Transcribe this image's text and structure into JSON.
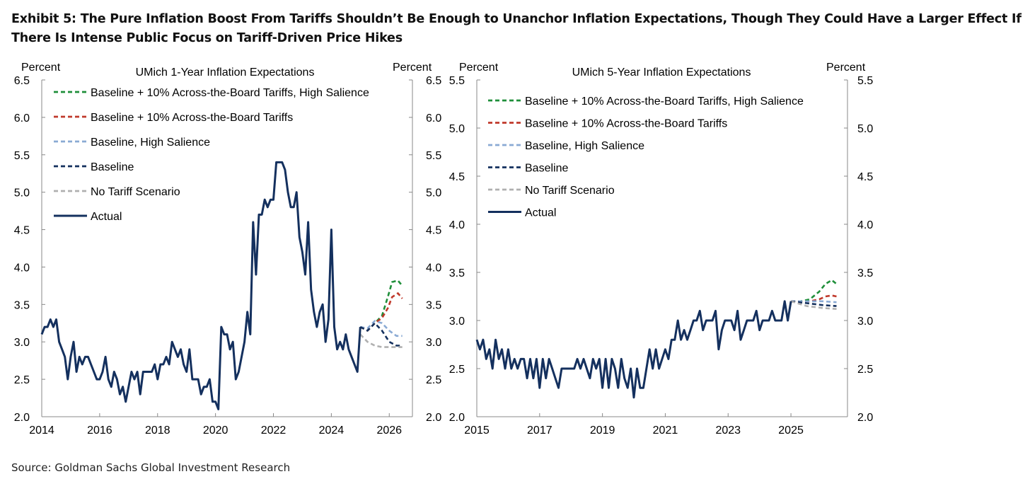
{
  "page": {
    "title": "Exhibit 5: The Pure Inflation Boost From Tariffs Shouldn’t Be Enough to Unanchor Inflation Expectations, Though They Could Have a Larger Effect If There Is Intense Public Focus on Tariff-Driven Price Hikes",
    "source": "Source: Goldman Sachs Global Investment Research"
  },
  "chart_data": [
    {
      "type": "line",
      "title": "UMich 1-Year Inflation  Expectations",
      "ylabel_left": "Percent",
      "ylabel_right": "Percent",
      "xlim": [
        2014,
        2026.8
      ],
      "ylim": [
        2.0,
        6.5
      ],
      "x_ticks": [
        "2014",
        "2016",
        "2018",
        "2020",
        "2022",
        "2024",
        "2026"
      ],
      "y_ticks": [
        "2.0",
        "2.5",
        "3.0",
        "3.5",
        "4.0",
        "4.5",
        "5.0",
        "5.5",
        "6.0",
        "6.5"
      ],
      "legend_position": "top-left",
      "series": [
        {
          "name": "Baseline + 10% Across-the-Board Tariffs, High Salience",
          "color": "#1f8f3a",
          "style": "dashed",
          "x": [
            2025.0,
            2025.25,
            2025.5,
            2025.75,
            2025.95,
            2026.1,
            2026.3,
            2026.45
          ],
          "y": [
            3.2,
            3.15,
            3.25,
            3.35,
            3.6,
            3.8,
            3.82,
            3.75
          ]
        },
        {
          "name": "Baseline + 10% Across-the-Board Tariffs",
          "color": "#c0392b",
          "style": "dashed",
          "x": [
            2025.0,
            2025.25,
            2025.5,
            2025.75,
            2025.95,
            2026.1,
            2026.3,
            2026.45
          ],
          "y": [
            3.2,
            3.15,
            3.25,
            3.32,
            3.45,
            3.6,
            3.65,
            3.58
          ]
        },
        {
          "name": "Baseline, High Salience",
          "color": "#8aaad4",
          "style": "dashed",
          "x": [
            2025.0,
            2025.25,
            2025.5,
            2025.75,
            2026.0,
            2026.25,
            2026.45
          ],
          "y": [
            3.2,
            3.18,
            3.28,
            3.25,
            3.15,
            3.08,
            3.08
          ]
        },
        {
          "name": "Baseline",
          "color": "#14305e",
          "style": "dashed",
          "x": [
            2025.0,
            2025.25,
            2025.5,
            2025.75,
            2026.0,
            2026.25,
            2026.45
          ],
          "y": [
            3.2,
            3.15,
            3.25,
            3.15,
            3.0,
            2.95,
            2.95
          ]
        },
        {
          "name": "No Tariff Scenario",
          "color": "#b0b0b0",
          "style": "dashed",
          "x": [
            2025.0,
            2025.25,
            2025.5,
            2025.75,
            2026.0,
            2026.25,
            2026.45
          ],
          "y": [
            3.1,
            3.0,
            2.95,
            2.93,
            2.93,
            2.93,
            2.93
          ]
        },
        {
          "name": "Actual",
          "color": "#14305e",
          "style": "solid",
          "x": [
            2014.0,
            2014.1,
            2014.2,
            2014.3,
            2014.4,
            2014.5,
            2014.6,
            2014.7,
            2014.8,
            2014.9,
            2015.0,
            2015.1,
            2015.2,
            2015.3,
            2015.4,
            2015.5,
            2015.6,
            2015.7,
            2015.8,
            2015.9,
            2016.0,
            2016.1,
            2016.2,
            2016.3,
            2016.4,
            2016.5,
            2016.6,
            2016.7,
            2016.8,
            2016.9,
            2017.0,
            2017.1,
            2017.2,
            2017.3,
            2017.4,
            2017.5,
            2017.6,
            2017.7,
            2017.8,
            2017.9,
            2018.0,
            2018.1,
            2018.2,
            2018.3,
            2018.4,
            2018.5,
            2018.6,
            2018.7,
            2018.8,
            2018.9,
            2019.0,
            2019.1,
            2019.2,
            2019.3,
            2019.4,
            2019.5,
            2019.6,
            2019.7,
            2019.8,
            2019.9,
            2020.0,
            2020.1,
            2020.2,
            2020.3,
            2020.4,
            2020.5,
            2020.6,
            2020.7,
            2020.8,
            2020.9,
            2021.0,
            2021.1,
            2021.2,
            2021.3,
            2021.4,
            2021.5,
            2021.6,
            2021.7,
            2021.8,
            2021.9,
            2022.0,
            2022.1,
            2022.2,
            2022.3,
            2022.4,
            2022.5,
            2022.6,
            2022.7,
            2022.8,
            2022.9,
            2023.0,
            2023.1,
            2023.2,
            2023.3,
            2023.4,
            2023.5,
            2023.6,
            2023.7,
            2023.8,
            2023.9,
            2024.0,
            2024.1,
            2024.2,
            2024.3,
            2024.4,
            2024.5,
            2024.6,
            2024.7,
            2024.8,
            2024.9,
            2025.0
          ],
          "y": [
            3.1,
            3.2,
            3.2,
            3.3,
            3.2,
            3.3,
            3.0,
            2.9,
            2.8,
            2.5,
            2.8,
            3.0,
            2.6,
            2.8,
            2.7,
            2.8,
            2.8,
            2.7,
            2.6,
            2.5,
            2.5,
            2.6,
            2.8,
            2.5,
            2.4,
            2.6,
            2.5,
            2.3,
            2.4,
            2.2,
            2.4,
            2.6,
            2.5,
            2.6,
            2.3,
            2.6,
            2.6,
            2.6,
            2.6,
            2.7,
            2.5,
            2.7,
            2.7,
            2.8,
            2.7,
            3.0,
            2.9,
            2.8,
            2.9,
            2.7,
            2.6,
            2.9,
            2.5,
            2.5,
            2.5,
            2.3,
            2.4,
            2.4,
            2.5,
            2.2,
            2.2,
            2.1,
            3.2,
            3.1,
            3.1,
            2.9,
            3.0,
            2.5,
            2.6,
            2.8,
            3.0,
            3.4,
            3.1,
            4.6,
            3.9,
            4.7,
            4.7,
            4.9,
            4.8,
            4.9,
            4.9,
            5.4,
            5.4,
            5.4,
            5.3,
            5.0,
            4.8,
            4.8,
            5.0,
            4.4,
            4.2,
            3.9,
            4.6,
            3.7,
            3.4,
            3.2,
            3.4,
            3.5,
            3.0,
            3.3,
            4.5,
            3.2,
            2.9,
            3.0,
            2.9,
            3.1,
            2.9,
            2.8,
            2.7,
            2.6,
            3.2
          ]
        }
      ]
    },
    {
      "type": "line",
      "title": "UMich 5-Year Inflation  Expectations",
      "ylabel_left": "Percent",
      "ylabel_right": "Percent",
      "xlim": [
        2015,
        2026.8
      ],
      "ylim": [
        2.0,
        5.5
      ],
      "x_ticks": [
        "2015",
        "2017",
        "2019",
        "2021",
        "2023",
        "2025"
      ],
      "y_ticks": [
        "2.0",
        "2.5",
        "3.0",
        "3.5",
        "4.0",
        "4.5",
        "5.0",
        "5.5"
      ],
      "legend_position": "top-left",
      "series": [
        {
          "name": "Baseline + 10% Across-the-Board Tariffs, High Salience",
          "color": "#1f8f3a",
          "style": "dashed",
          "x": [
            2025.0,
            2025.3,
            2025.6,
            2025.9,
            2026.1,
            2026.3,
            2026.45
          ],
          "y": [
            3.2,
            3.2,
            3.22,
            3.3,
            3.38,
            3.42,
            3.38
          ]
        },
        {
          "name": "Baseline + 10% Across-the-Board Tariffs",
          "color": "#c0392b",
          "style": "dashed",
          "x": [
            2025.0,
            2025.3,
            2025.6,
            2025.9,
            2026.1,
            2026.3,
            2026.45
          ],
          "y": [
            3.2,
            3.2,
            3.2,
            3.22,
            3.25,
            3.26,
            3.25
          ]
        },
        {
          "name": "Baseline, High Salience",
          "color": "#8aaad4",
          "style": "dashed",
          "x": [
            2025.0,
            2025.5,
            2026.0,
            2026.45
          ],
          "y": [
            3.2,
            3.2,
            3.2,
            3.19
          ]
        },
        {
          "name": "Baseline",
          "color": "#14305e",
          "style": "dashed",
          "x": [
            2025.0,
            2025.5,
            2026.0,
            2026.45
          ],
          "y": [
            3.2,
            3.18,
            3.16,
            3.15
          ]
        },
        {
          "name": "No Tariff Scenario",
          "color": "#b0b0b0",
          "style": "dashed",
          "x": [
            2025.0,
            2025.5,
            2026.0,
            2026.45
          ],
          "y": [
            3.2,
            3.15,
            3.13,
            3.12
          ]
        },
        {
          "name": "Actual",
          "color": "#14305e",
          "style": "solid",
          "x": [
            2015.0,
            2015.1,
            2015.2,
            2015.3,
            2015.4,
            2015.5,
            2015.6,
            2015.7,
            2015.8,
            2015.9,
            2016.0,
            2016.1,
            2016.2,
            2016.3,
            2016.4,
            2016.5,
            2016.6,
            2016.7,
            2016.8,
            2016.9,
            2017.0,
            2017.1,
            2017.2,
            2017.3,
            2017.4,
            2017.5,
            2017.6,
            2017.7,
            2017.8,
            2017.9,
            2018.0,
            2018.1,
            2018.2,
            2018.3,
            2018.4,
            2018.5,
            2018.6,
            2018.7,
            2018.8,
            2018.9,
            2019.0,
            2019.1,
            2019.2,
            2019.3,
            2019.4,
            2019.5,
            2019.6,
            2019.7,
            2019.8,
            2019.9,
            2020.0,
            2020.1,
            2020.2,
            2020.3,
            2020.4,
            2020.5,
            2020.6,
            2020.7,
            2020.8,
            2020.9,
            2021.0,
            2021.1,
            2021.2,
            2021.3,
            2021.4,
            2021.5,
            2021.6,
            2021.7,
            2021.8,
            2021.9,
            2022.0,
            2022.1,
            2022.2,
            2022.3,
            2022.4,
            2022.5,
            2022.6,
            2022.7,
            2022.8,
            2022.9,
            2023.0,
            2023.1,
            2023.2,
            2023.3,
            2023.4,
            2023.5,
            2023.6,
            2023.7,
            2023.8,
            2023.9,
            2024.0,
            2024.1,
            2024.2,
            2024.3,
            2024.4,
            2024.5,
            2024.6,
            2024.7,
            2024.8,
            2024.9,
            2025.0
          ],
          "y": [
            2.8,
            2.7,
            2.8,
            2.6,
            2.7,
            2.5,
            2.8,
            2.6,
            2.7,
            2.5,
            2.7,
            2.5,
            2.6,
            2.5,
            2.6,
            2.6,
            2.4,
            2.6,
            2.4,
            2.6,
            2.3,
            2.6,
            2.4,
            2.6,
            2.5,
            2.4,
            2.3,
            2.5,
            2.5,
            2.5,
            2.5,
            2.5,
            2.6,
            2.5,
            2.6,
            2.5,
            2.4,
            2.6,
            2.5,
            2.6,
            2.3,
            2.6,
            2.3,
            2.6,
            2.5,
            2.3,
            2.6,
            2.4,
            2.3,
            2.5,
            2.2,
            2.5,
            2.3,
            2.3,
            2.5,
            2.7,
            2.5,
            2.7,
            2.5,
            2.6,
            2.7,
            2.6,
            2.8,
            2.8,
            3.0,
            2.8,
            2.9,
            2.8,
            2.9,
            3.0,
            3.0,
            3.1,
            2.9,
            3.0,
            3.0,
            3.0,
            3.1,
            2.7,
            2.9,
            3.0,
            3.0,
            3.0,
            2.9,
            3.1,
            2.8,
            2.9,
            3.0,
            3.0,
            3.0,
            3.1,
            2.9,
            3.0,
            3.0,
            3.0,
            3.1,
            3.0,
            3.0,
            3.0,
            3.2,
            3.0,
            3.2
          ]
        }
      ]
    }
  ]
}
